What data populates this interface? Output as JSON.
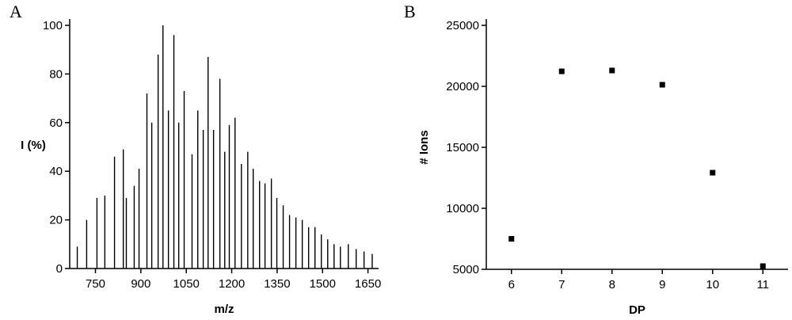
{
  "chart_data": [
    {
      "type": "stem",
      "panel_label": "A",
      "x_label": "m/z",
      "y_label": "I (%)",
      "color": "#000000",
      "x": [
        690,
        721,
        755,
        781,
        813,
        842,
        852,
        878,
        894,
        920,
        936,
        957,
        973,
        991,
        1009,
        1025,
        1043,
        1069,
        1088,
        1106,
        1122,
        1140,
        1161,
        1177,
        1192,
        1211,
        1232,
        1253,
        1271,
        1292,
        1310,
        1331,
        1349,
        1370,
        1391,
        1412,
        1433,
        1454,
        1475,
        1496,
        1517,
        1538,
        1559,
        1585,
        1611,
        1637,
        1664
      ],
      "values": [
        9,
        20,
        29,
        30,
        46,
        49,
        29,
        34,
        41,
        72,
        60,
        88,
        100,
        65,
        96,
        60,
        73,
        47,
        65,
        57,
        87,
        57,
        78,
        48,
        59,
        62,
        43,
        48,
        41,
        36,
        35,
        37,
        29,
        26,
        22,
        21,
        20,
        17,
        17,
        14,
        12,
        10,
        9,
        10,
        8,
        7,
        6
      ],
      "xlim": [
        665,
        1685
      ],
      "xticks": [
        750,
        900,
        1050,
        1200,
        1350,
        1500,
        1650
      ],
      "ylim": [
        0,
        100
      ],
      "yticks": [
        0,
        20,
        40,
        60,
        80,
        100
      ]
    },
    {
      "type": "scatter",
      "panel_label": "B",
      "x_label": "DP",
      "y_label": "# Ions",
      "color": "#000000",
      "x": [
        6,
        7,
        8,
        9,
        10,
        11
      ],
      "values": [
        7500,
        21230,
        21300,
        20130,
        12920,
        5260
      ],
      "xlim": [
        5.5,
        11.5
      ],
      "xticks": [
        6,
        7,
        8,
        9,
        10,
        11
      ],
      "ylim": [
        5000,
        25000
      ],
      "yticks": [
        5000,
        10000,
        15000,
        20000,
        25000
      ]
    }
  ]
}
